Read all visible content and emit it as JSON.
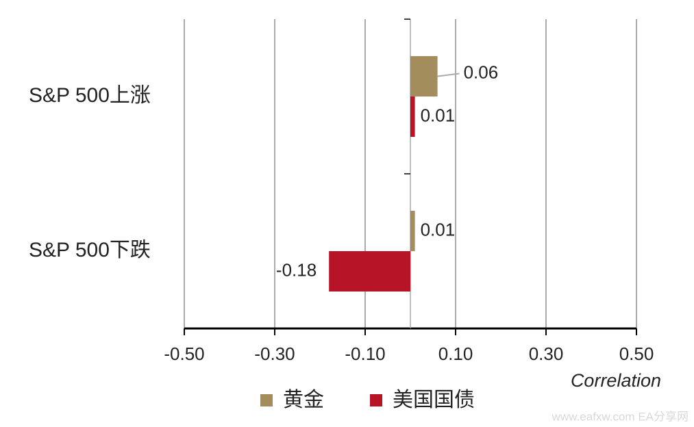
{
  "chart_data": {
    "type": "hbar",
    "categories": [
      "S&P 500上涨",
      "S&P 500下跌"
    ],
    "series": [
      {
        "name": "黄金",
        "color": "#a38d5d",
        "values": [
          0.06,
          0.01
        ]
      },
      {
        "name": "美国国债",
        "color": "#b81428",
        "values": [
          0.01,
          -0.18
        ]
      }
    ],
    "xlim": [
      -0.5,
      0.5
    ],
    "xticks": [
      {
        "value": -0.5,
        "label": "-0.50"
      },
      {
        "value": -0.3,
        "label": "-0.30"
      },
      {
        "value": -0.1,
        "label": "-0.10"
      },
      {
        "value": 0.1,
        "label": "0.10"
      },
      {
        "value": 0.3,
        "label": "0.30"
      },
      {
        "value": 0.5,
        "label": "0.50"
      }
    ],
    "x_label": "Correlation",
    "grid": true,
    "legend": "bottom",
    "watermark": "www.eafxw.com  EA分享网"
  }
}
